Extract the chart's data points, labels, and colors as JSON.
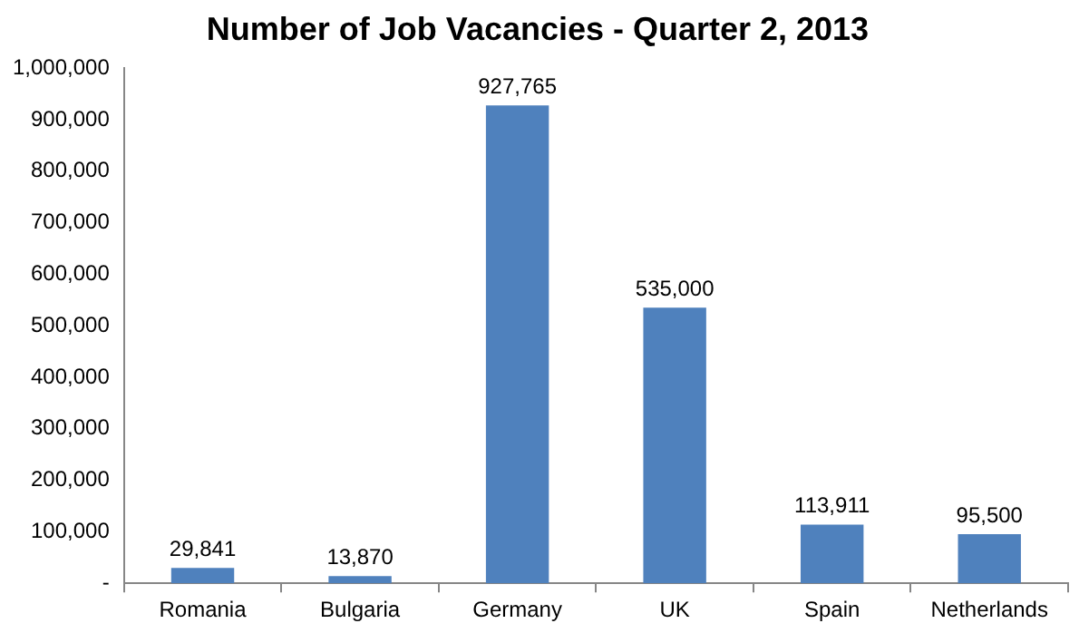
{
  "chart_data": {
    "type": "bar",
    "title": "Number of Job Vacancies - Quarter 2, 2013",
    "categories": [
      "Romania",
      "Bulgaria",
      "Germany",
      "UK",
      "Spain",
      "Netherlands"
    ],
    "values": [
      29841,
      13870,
      927765,
      535000,
      113911,
      95500
    ],
    "value_labels": [
      "29,841",
      "13,870",
      "927,765",
      "535,000",
      "113,911",
      "95,500"
    ],
    "color": "#4f81bd",
    "ylim": [
      0,
      1000000
    ],
    "yticks": [
      {
        "value": 0,
        "label": "-"
      },
      {
        "value": 100000,
        "label": "100,000"
      },
      {
        "value": 200000,
        "label": "200,000"
      },
      {
        "value": 300000,
        "label": "300,000"
      },
      {
        "value": 400000,
        "label": "400,000"
      },
      {
        "value": 500000,
        "label": "500,000"
      },
      {
        "value": 600000,
        "label": "600,000"
      },
      {
        "value": 700000,
        "label": "700,000"
      },
      {
        "value": 800000,
        "label": "800,000"
      },
      {
        "value": 900000,
        "label": "900,000"
      },
      {
        "value": 1000000,
        "label": "1,000,000"
      }
    ],
    "grid": false,
    "legend": false
  }
}
